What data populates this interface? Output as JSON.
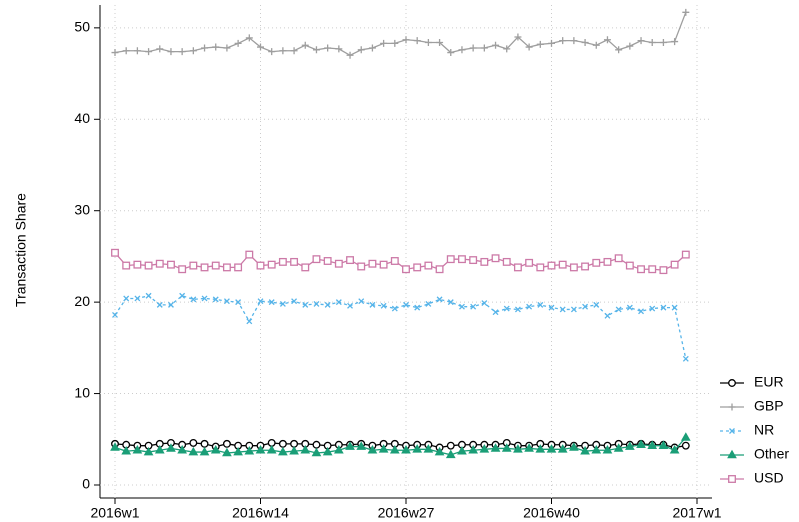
{
  "chart_data": {
    "type": "line",
    "y_label": "Transaction Share",
    "x": [
      1,
      2,
      3,
      4,
      5,
      6,
      7,
      8,
      9,
      10,
      11,
      12,
      13,
      14,
      15,
      16,
      17,
      18,
      19,
      20,
      21,
      22,
      23,
      24,
      25,
      26,
      27,
      28,
      29,
      30,
      31,
      32,
      33,
      34,
      35,
      36,
      37,
      38,
      39,
      40,
      41,
      42,
      43,
      44,
      45,
      46,
      47,
      48,
      49,
      50,
      51,
      52
    ],
    "xlim": [
      1,
      53
    ],
    "xticks": [
      {
        "value": 1,
        "label": "2016w1"
      },
      {
        "value": 14,
        "label": "2016w14"
      },
      {
        "value": 27,
        "label": "2016w27"
      },
      {
        "value": 40,
        "label": "2016w40"
      },
      {
        "value": 53,
        "label": "2017w1"
      }
    ],
    "ylim": [
      -1.5,
      52.5
    ],
    "yticks": [
      0,
      10,
      20,
      30,
      40,
      50
    ],
    "grid": true,
    "legend": "right",
    "series": [
      {
        "name": "EUR",
        "color": "#000000",
        "marker": "circle",
        "values": [
          4.5,
          4.4,
          4.3,
          4.3,
          4.5,
          4.6,
          4.4,
          4.6,
          4.5,
          4.2,
          4.5,
          4.3,
          4.3,
          4.3,
          4.6,
          4.5,
          4.5,
          4.5,
          4.4,
          4.3,
          4.4,
          4.4,
          4.5,
          4.3,
          4.5,
          4.5,
          4.3,
          4.4,
          4.4,
          4.1,
          4.3,
          4.4,
          4.4,
          4.4,
          4.4,
          4.6,
          4.3,
          4.3,
          4.5,
          4.4,
          4.4,
          4.3,
          4.3,
          4.4,
          4.3,
          4.5,
          4.4,
          4.5,
          4.4,
          4.4,
          4.1,
          4.3
        ]
      },
      {
        "name": "GBP",
        "color": "#9e9e9e",
        "marker": "plus",
        "values": [
          47.3,
          47.5,
          47.5,
          47.4,
          47.7,
          47.4,
          47.4,
          47.5,
          47.8,
          47.9,
          47.8,
          48.3,
          48.9,
          47.9,
          47.4,
          47.5,
          47.5,
          48.1,
          47.6,
          47.8,
          47.7,
          47.0,
          47.6,
          47.8,
          48.3,
          48.3,
          48.7,
          48.6,
          48.4,
          48.4,
          47.3,
          47.6,
          47.8,
          47.8,
          48.1,
          47.7,
          49.0,
          47.9,
          48.2,
          48.3,
          48.6,
          48.6,
          48.4,
          48.1,
          48.7,
          47.6,
          48.0,
          48.6,
          48.4,
          48.4,
          48.5,
          51.7
        ]
      },
      {
        "name": "NR",
        "color": "#56b4e9",
        "marker": "x",
        "dashed": true,
        "values": [
          18.6,
          20.4,
          20.4,
          20.7,
          19.7,
          19.7,
          20.7,
          20.3,
          20.4,
          20.3,
          20.1,
          20.0,
          17.9,
          20.1,
          20.0,
          19.8,
          20.1,
          19.7,
          19.8,
          19.7,
          20.0,
          19.6,
          20.1,
          19.7,
          19.6,
          19.3,
          19.7,
          19.4,
          19.8,
          20.3,
          20.0,
          19.5,
          19.5,
          19.9,
          18.9,
          19.3,
          19.2,
          19.5,
          19.7,
          19.4,
          19.2,
          19.2,
          19.5,
          19.7,
          18.5,
          19.2,
          19.4,
          19.0,
          19.3,
          19.4,
          19.4,
          13.8
        ]
      },
      {
        "name": "Other",
        "color": "#1a9e77",
        "marker": "triangle",
        "values": [
          4.1,
          3.7,
          3.8,
          3.6,
          3.8,
          4.0,
          3.8,
          3.6,
          3.6,
          3.8,
          3.5,
          3.6,
          3.7,
          3.8,
          3.8,
          3.6,
          3.7,
          3.8,
          3.5,
          3.6,
          3.8,
          4.2,
          4.2,
          3.8,
          3.9,
          3.8,
          3.8,
          3.9,
          3.9,
          3.6,
          3.3,
          3.7,
          3.8,
          3.9,
          4.0,
          4.0,
          3.9,
          4.0,
          3.9,
          3.9,
          3.9,
          4.1,
          3.7,
          3.8,
          3.8,
          4.0,
          4.2,
          4.4,
          4.3,
          4.3,
          3.8,
          5.2
        ]
      },
      {
        "name": "USD",
        "color": "#cc79a7",
        "marker": "square",
        "values": [
          25.4,
          24.0,
          24.1,
          24.0,
          24.2,
          24.1,
          23.6,
          24.0,
          23.8,
          24.0,
          23.8,
          23.8,
          25.2,
          24.0,
          24.1,
          24.4,
          24.4,
          23.8,
          24.7,
          24.5,
          24.2,
          24.6,
          23.9,
          24.2,
          24.1,
          24.5,
          23.6,
          23.8,
          24.0,
          23.6,
          24.7,
          24.7,
          24.6,
          24.4,
          24.8,
          24.4,
          23.8,
          24.3,
          23.8,
          24.0,
          24.1,
          23.8,
          23.9,
          24.3,
          24.4,
          24.8,
          24.0,
          23.6,
          23.6,
          23.5,
          24.1,
          25.2
        ]
      }
    ]
  }
}
